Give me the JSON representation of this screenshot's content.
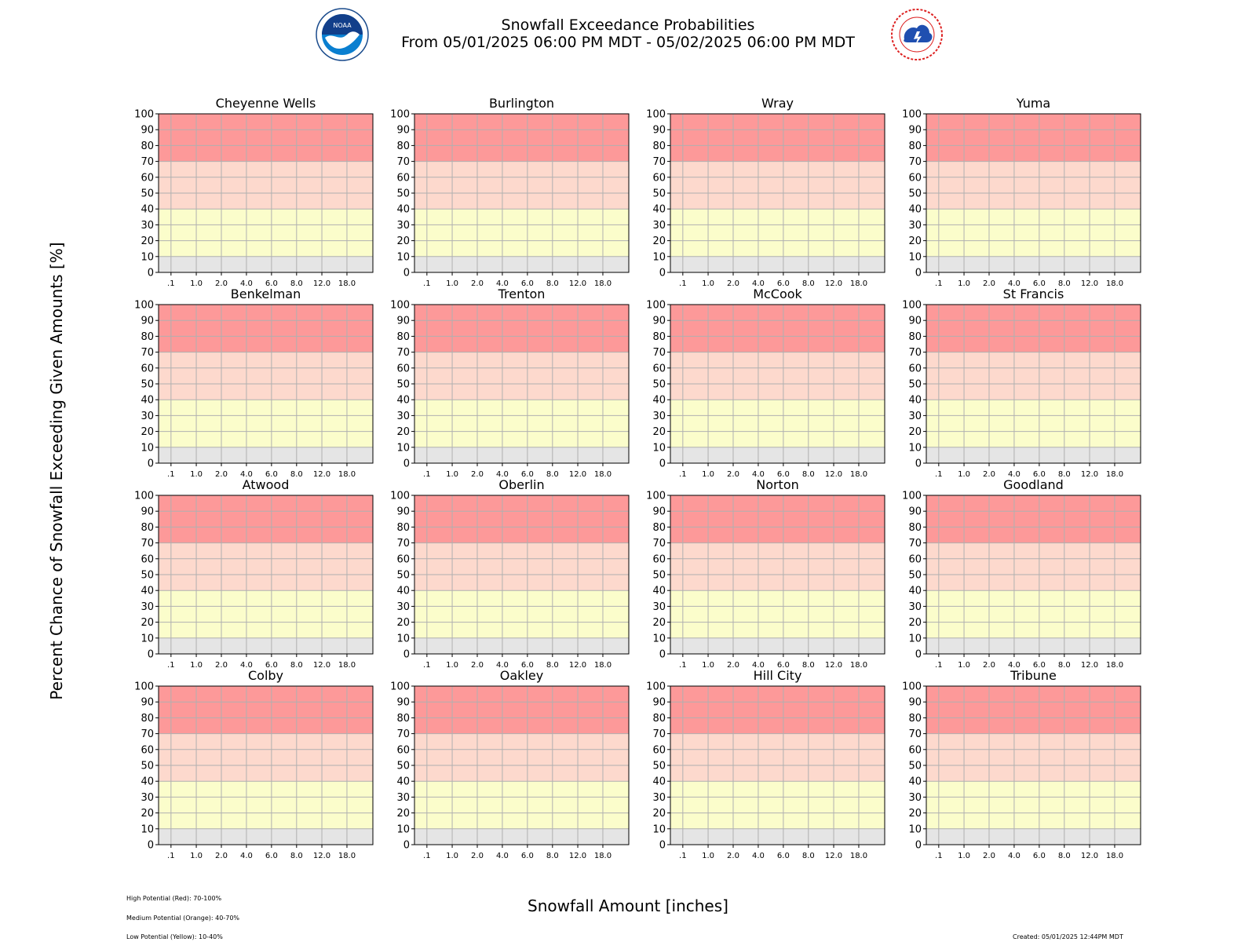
{
  "header": {
    "title": "Snowfall Exceedance Probabilities",
    "subtitle": "From 05/01/2025 06:00 PM MDT - 05/02/2025 06:00 PM MDT",
    "left_logo_icon": "noaa-logo-icon",
    "right_logo_icon": "nws-logo-icon",
    "left_logo_text": "NOAA",
    "right_logo_text": "NATIONAL WEATHER SERVICE"
  },
  "chart_data": {
    "type": "heatmap",
    "title": "Snowfall Exceedance Probabilities",
    "subtitle": "From 05/01/2025 06:00 PM MDT - 05/02/2025 06:00 PM MDT",
    "xlabel": "Snowfall Amount [inches]",
    "ylabel": "Percent Chance of Snowfall Exceeding Given Amounts [%]",
    "x_ticks": [
      ".1",
      "1.0",
      "2.0",
      "4.0",
      "6.0",
      "8.0",
      "12.0",
      "18.0"
    ],
    "y_ticks": [
      0,
      10,
      20,
      30,
      40,
      50,
      60,
      70,
      80,
      90,
      100
    ],
    "ylim": [
      0,
      100
    ],
    "grid": true,
    "bands": [
      {
        "name": "none",
        "from": 0,
        "to": 10,
        "color": "#e5e5e5"
      },
      {
        "name": "Low Potential (Yellow)",
        "from": 10,
        "to": 40,
        "color": "#fbfdcb"
      },
      {
        "name": "Medium Potential (Orange)",
        "from": 40,
        "to": 70,
        "color": "#fdd9cd"
      },
      {
        "name": "High Potential (Red)",
        "from": 70,
        "to": 100,
        "color": "#fd9999"
      }
    ],
    "panels": [
      {
        "name": "Cheyenne Wells",
        "values": []
      },
      {
        "name": "Burlington",
        "values": []
      },
      {
        "name": "Wray",
        "values": []
      },
      {
        "name": "Yuma",
        "values": []
      },
      {
        "name": "Benkelman",
        "values": []
      },
      {
        "name": "Trenton",
        "values": []
      },
      {
        "name": "McCook",
        "values": []
      },
      {
        "name": "St Francis",
        "values": []
      },
      {
        "name": "Atwood",
        "values": []
      },
      {
        "name": "Oberlin",
        "values": []
      },
      {
        "name": "Norton",
        "values": []
      },
      {
        "name": "Goodland",
        "values": []
      },
      {
        "name": "Colby",
        "values": []
      },
      {
        "name": "Oakley",
        "values": []
      },
      {
        "name": "Hill City",
        "values": []
      },
      {
        "name": "Tribune",
        "values": []
      }
    ]
  },
  "footer": {
    "legend_high": "High Potential (Red): 70-100%",
    "legend_medium": "Medium Potential (Orange): 40-70%",
    "legend_low": "Low Potential (Yellow): 10-40%",
    "created": "Created: 05/01/2025 12:44PM MDT"
  }
}
